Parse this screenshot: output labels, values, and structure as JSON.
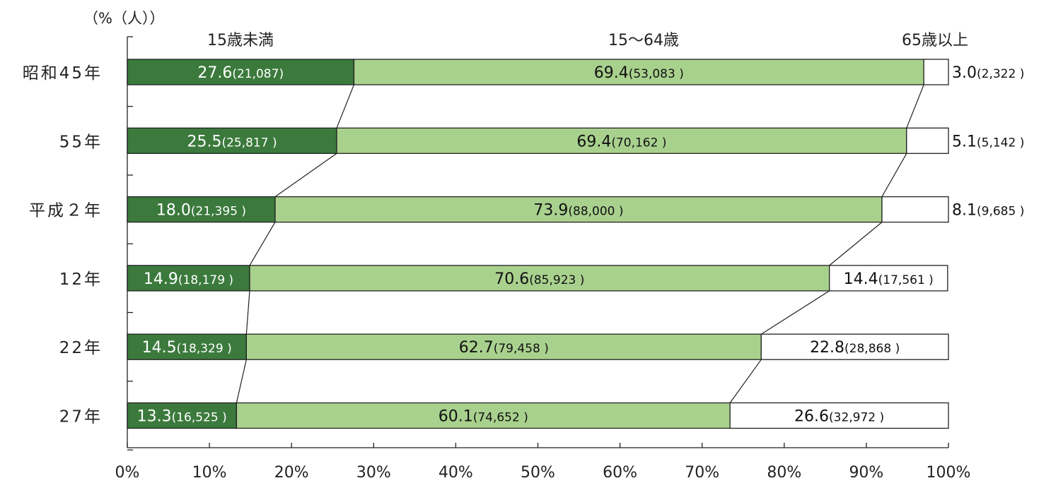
{
  "chart_data": {
    "type": "bar",
    "orientation": "horizontal",
    "stacked": true,
    "unit_label": "（%（人））",
    "categories": [
      "昭和45年",
      "55年",
      "平成２年",
      "12年",
      "22年",
      "27年"
    ],
    "series": [
      {
        "name": "15歳未満",
        "color": "#3b7a3c",
        "values": [
          27.6,
          25.5,
          18.0,
          14.9,
          14.5,
          13.3
        ],
        "labels": [
          "27.6",
          "25.5",
          "18.0",
          "14.9",
          "14.5",
          "13.3"
        ],
        "counts": [
          "(21,087)",
          "(25,817 )",
          "(21,395 )",
          "(18,179 )",
          "(18,329 )",
          "(16,525 )"
        ]
      },
      {
        "name": "15～64歳",
        "color": "#a9d18e",
        "values": [
          69.4,
          69.4,
          73.9,
          70.6,
          62.7,
          60.1
        ],
        "labels": [
          "69.4",
          "69.4",
          "73.9",
          "70.6",
          "62.7",
          "60.1"
        ],
        "counts": [
          "(53,083 )",
          "(70,162 )",
          "(88,000 )",
          "(85,923 )",
          "(79,458 )",
          "(74,652 )"
        ]
      },
      {
        "name": "65歳以上",
        "color": "#ffffff",
        "values": [
          3.0,
          5.1,
          8.1,
          14.4,
          22.8,
          26.6
        ],
        "labels": [
          "3.0",
          "5.1",
          "8.1",
          "14.4",
          "22.8",
          "26.6"
        ],
        "counts": [
          "(2,322 )",
          "(5,142 )",
          "(9,685 )",
          "(17,561 )",
          "(28,868 )",
          "(32,972 )"
        ]
      }
    ],
    "xlim": [
      0,
      100
    ],
    "x_ticks": [
      "0%",
      "10%",
      "20%",
      "30%",
      "40%",
      "50%",
      "60%",
      "70%",
      "80%",
      "90%",
      "100%"
    ],
    "connector_lines": true,
    "grid": false
  }
}
